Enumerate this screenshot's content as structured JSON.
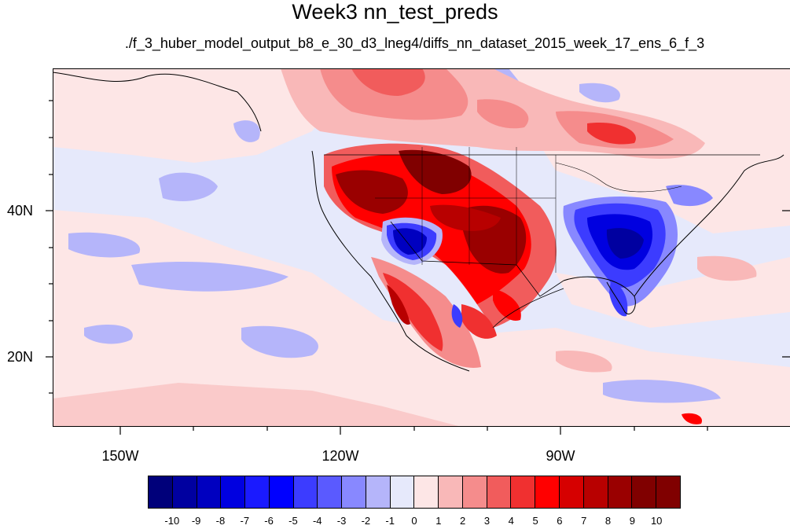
{
  "title": "Week3 nn_test_preds",
  "subtitle": "./f_3_huber_model_output_b8_e_30_d3_lneg4/diffs_nn_dataset_2015_week_17_ens_6_f_3",
  "lat_labels": [
    "40N",
    "20N"
  ],
  "lon_labels": [
    "150W",
    "120W",
    "90W"
  ],
  "colorbar": {
    "labels": [
      "-10",
      "-9",
      "-8",
      "-7",
      "-6",
      "-5",
      "-4",
      "-3",
      "-2",
      "-1",
      "0",
      "1",
      "2",
      "3",
      "4",
      "5",
      "6",
      "7",
      "8",
      "9",
      "10"
    ],
    "colors": [
      "#00007a",
      "#0000a0",
      "#0000c0",
      "#0000e0",
      "#1a1aff",
      "#0000ff",
      "#3c3cff",
      "#5a5aff",
      "#8888ff",
      "#b5b5fa",
      "#e6e9fb",
      "#fde6e6",
      "#f9b8b8",
      "#f58c8c",
      "#f15c5c",
      "#f03030",
      "#ff0000",
      "#d60000",
      "#b80000",
      "#9a0000",
      "#800000"
    ]
  }
}
